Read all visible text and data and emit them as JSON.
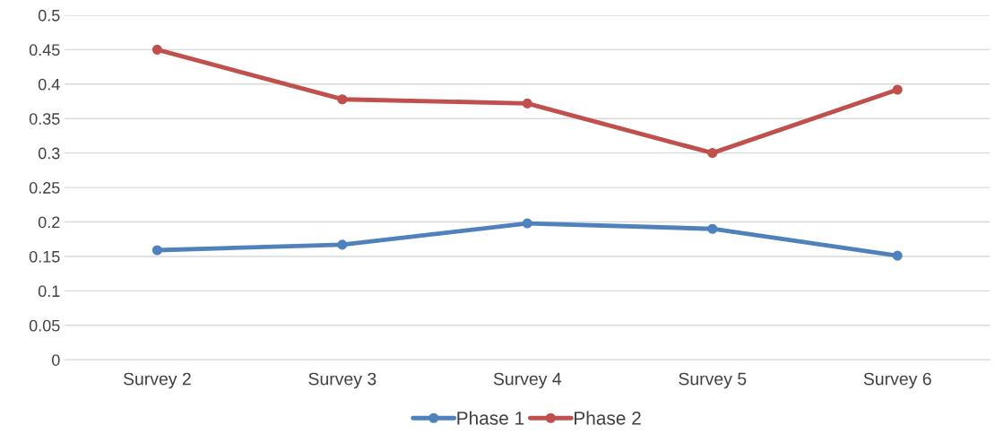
{
  "chart_data": {
    "type": "line",
    "categories": [
      "Survey 2",
      "Survey 3",
      "Survey 4",
      "Survey 5",
      "Survey 6"
    ],
    "series": [
      {
        "name": "Phase 1",
        "color": "#4f81bd",
        "values": [
          0.159,
          0.167,
          0.198,
          0.19,
          0.151
        ]
      },
      {
        "name": "Phase 2",
        "color": "#c0504d",
        "values": [
          0.45,
          0.378,
          0.372,
          0.3,
          0.392
        ]
      }
    ],
    "ylim": [
      0,
      0.5
    ],
    "yticks": [
      0,
      0.05,
      0.1,
      0.15,
      0.2,
      0.25,
      0.3,
      0.35,
      0.4,
      0.45,
      0.5
    ],
    "grid": "y",
    "legend": "bottom",
    "marker": "circle",
    "line_style": "solid"
  }
}
